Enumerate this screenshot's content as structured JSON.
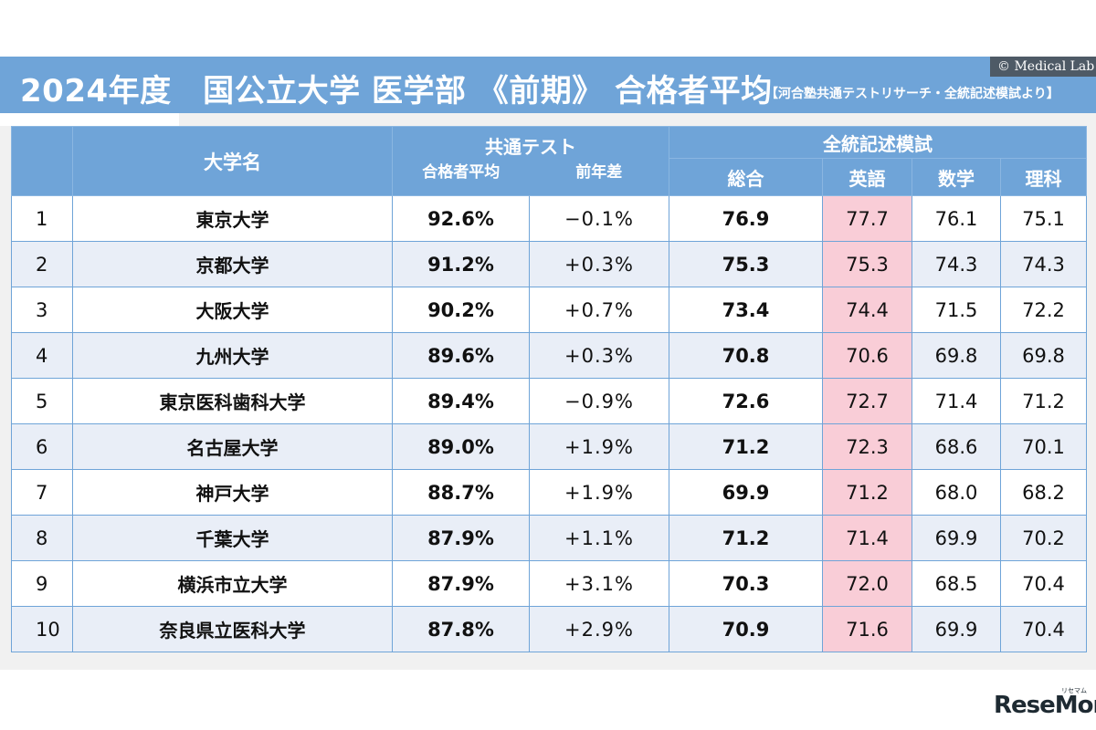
{
  "title": {
    "main": "2024年度　国公立大学 医学部 《前期》 合格者平均",
    "source": "【河合塾共通テストリサーチ・全統記述模試より】",
    "copyright": "© Medical Lab"
  },
  "table": {
    "headers": {
      "university": "大学名",
      "kyotsu": "共通テスト",
      "kyotsu_avg": "合格者平均",
      "kyotsu_diff": "前年差",
      "zento": "全統記述模試",
      "total": "総合",
      "english": "英語",
      "math": "数学",
      "science": "理科"
    },
    "rows": [
      {
        "rank": "1",
        "name": "東京大学",
        "avg": "92.6%",
        "diff": "−0.1%",
        "total": "76.9",
        "english": "77.7",
        "math": "76.1",
        "science": "75.1"
      },
      {
        "rank": "2",
        "name": "京都大学",
        "avg": "91.2%",
        "diff": "+0.3%",
        "total": "75.3",
        "english": "75.3",
        "math": "74.3",
        "science": "74.3"
      },
      {
        "rank": "3",
        "name": "大阪大学",
        "avg": "90.2%",
        "diff": "+0.7%",
        "total": "73.4",
        "english": "74.4",
        "math": "71.5",
        "science": "72.2"
      },
      {
        "rank": "4",
        "name": "九州大学",
        "avg": "89.6%",
        "diff": "+0.3%",
        "total": "70.8",
        "english": "70.6",
        "math": "69.8",
        "science": "69.8"
      },
      {
        "rank": "5",
        "name": "東京医科歯科大学",
        "avg": "89.4%",
        "diff": "−0.9%",
        "total": "72.6",
        "english": "72.7",
        "math": "71.4",
        "science": "71.2"
      },
      {
        "rank": "6",
        "name": "名古屋大学",
        "avg": "89.0%",
        "diff": "+1.9%",
        "total": "71.2",
        "english": "72.3",
        "math": "68.6",
        "science": "70.1"
      },
      {
        "rank": "7",
        "name": "神戸大学",
        "avg": "88.7%",
        "diff": "+1.9%",
        "total": "69.9",
        "english": "71.2",
        "math": "68.0",
        "science": "68.2"
      },
      {
        "rank": "8",
        "name": "千葉大学",
        "avg": "87.9%",
        "diff": "+1.1%",
        "total": "71.2",
        "english": "71.4",
        "math": "69.9",
        "science": "70.2"
      },
      {
        "rank": "9",
        "name": "横浜市立大学",
        "avg": "87.9%",
        "diff": "+3.1%",
        "total": "70.3",
        "english": "72.0",
        "math": "68.5",
        "science": "70.4"
      },
      {
        "rank": "10",
        "name": "奈良県立医科大学",
        "avg": "87.8%",
        "diff": "+2.9%",
        "total": "70.9",
        "english": "71.6",
        "math": "69.9",
        "science": "70.4"
      }
    ]
  },
  "brand": {
    "logo": "ReseMom",
    "small": "リセマム"
  },
  "colors": {
    "header_blue": "#6fa4d8",
    "row_alt": "#e9eef7",
    "english_highlight": "#f9cdd7"
  }
}
